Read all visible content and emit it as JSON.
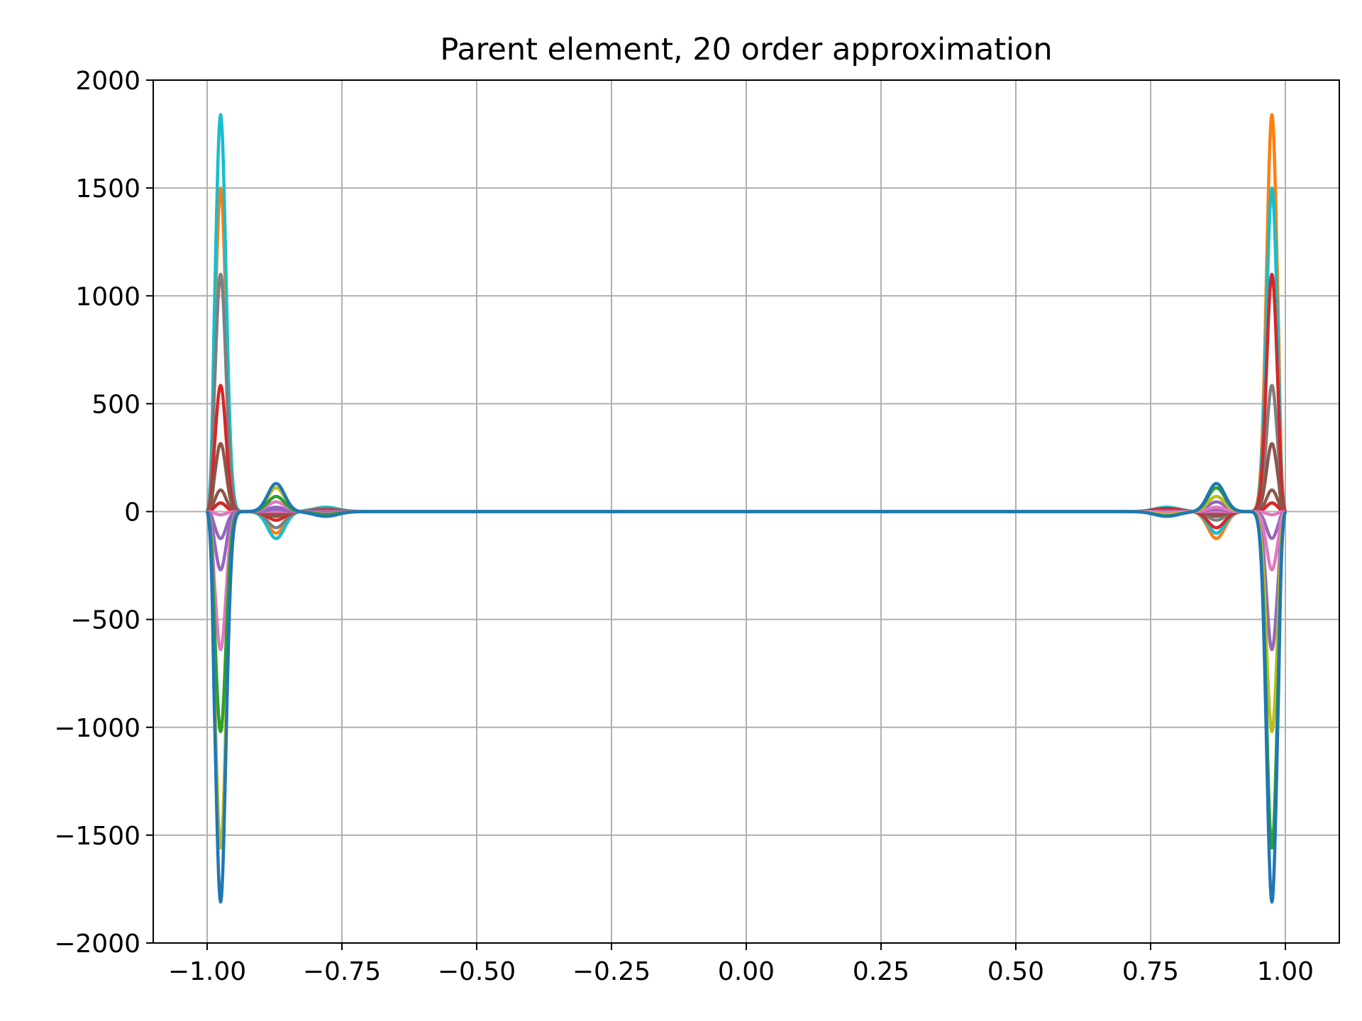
{
  "chart_data": {
    "type": "line",
    "title": "Parent element, 20 order approximation",
    "xlabel": "",
    "ylabel": "",
    "xlim": [
      -1.1,
      1.1
    ],
    "ylim": [
      -2000,
      2000
    ],
    "xticks": [
      -1.0,
      -0.75,
      -0.5,
      -0.25,
      0.0,
      0.25,
      0.5,
      0.75,
      1.0
    ],
    "xtick_labels": [
      "−1.00",
      "−0.75",
      "−0.50",
      "−0.25",
      "0.00",
      "0.25",
      "0.50",
      "0.75",
      "1.00"
    ],
    "yticks": [
      -2000,
      -1500,
      -1000,
      -500,
      0,
      500,
      1000,
      1500,
      2000
    ],
    "ytick_labels": [
      "−2000",
      "−1500",
      "−1000",
      "−500",
      "0",
      "500",
      "1000",
      "1500",
      "2000"
    ],
    "grid": true,
    "legend": "none",
    "series": [
      {
        "color": "#ff7f0e",
        "left": [
          1500,
          -100,
          20
        ],
        "right": [
          1840,
          -125,
          20
        ]
      },
      {
        "color": "#17becf",
        "left": [
          1840,
          -125,
          20
        ],
        "right": [
          1500,
          -100,
          20
        ]
      },
      {
        "color": "#7f7f7f",
        "left": [
          1100,
          -75,
          14
        ],
        "right": [
          585,
          -40,
          8
        ]
      },
      {
        "color": "#d62728",
        "left": [
          585,
          -40,
          8
        ],
        "right": [
          1100,
          -75,
          14
        ]
      },
      {
        "color": "#8c564b",
        "left": [
          315,
          -22,
          5
        ],
        "right": [
          315,
          -22,
          5
        ]
      },
      {
        "color": "#8c564b",
        "left": [
          100,
          -8,
          2
        ],
        "right": [
          100,
          -8,
          2
        ]
      },
      {
        "color": "#7f7f7f",
        "left": [
          40,
          -3,
          1
        ],
        "right": [
          40,
          -3,
          1
        ]
      },
      {
        "color": "#d62728",
        "left": [
          40,
          -3,
          1
        ],
        "right": [
          40,
          -3,
          1
        ]
      },
      {
        "color": "#e377c2",
        "left": [
          -15,
          1,
          0
        ],
        "right": [
          -15,
          1,
          0
        ]
      },
      {
        "color": "#9467bd",
        "left": [
          -125,
          10,
          -2
        ],
        "right": [
          -125,
          10,
          -2
        ]
      },
      {
        "color": "#9467bd",
        "left": [
          -270,
          20,
          -4
        ],
        "right": [
          -640,
          45,
          -9
        ]
      },
      {
        "color": "#e377c2",
        "left": [
          -640,
          45,
          -9
        ],
        "right": [
          -270,
          20,
          -4
        ]
      },
      {
        "color": "#bcbd22",
        "left": [
          -1560,
          110,
          -20
        ],
        "right": [
          -1020,
          70,
          -13
        ]
      },
      {
        "color": "#2ca02c",
        "left": [
          -1020,
          70,
          -13
        ],
        "right": [
          -1560,
          110,
          -20
        ]
      },
      {
        "color": "#1f77b4",
        "left": [
          -1810,
          130,
          -22
        ],
        "right": [
          -1810,
          130,
          -22
        ]
      }
    ]
  }
}
